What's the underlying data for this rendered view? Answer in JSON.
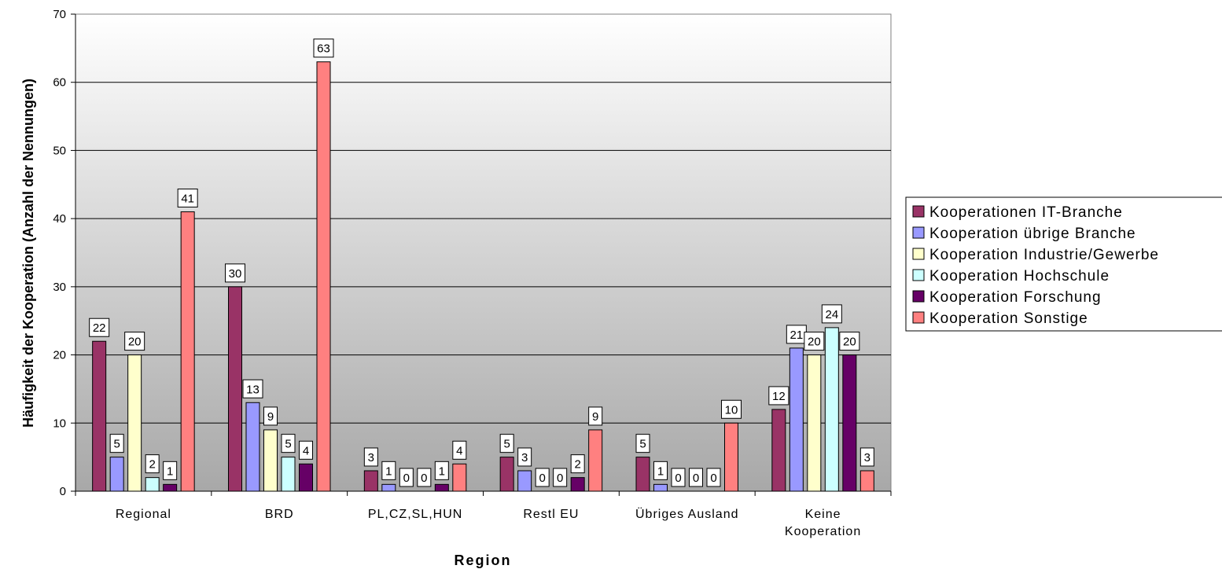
{
  "chart_data": {
    "type": "bar",
    "title": "",
    "xlabel": "Region",
    "ylabel": "Häufigkeit der Kooperation (Anzahl der Nennungen)",
    "ylim": [
      0,
      70
    ],
    "yticks": [
      0,
      10,
      20,
      30,
      40,
      50,
      60,
      70
    ],
    "grid": true,
    "legend_position": "right",
    "categories": [
      [
        "Regional"
      ],
      [
        "BRD"
      ],
      [
        "PL,CZ,SL,HUN"
      ],
      [
        "Restl EU"
      ],
      [
        "Übriges Ausland"
      ],
      [
        "Keine",
        "Kooperation"
      ]
    ],
    "series": [
      {
        "name": "Kooperationen IT-Branche",
        "color": "#993366",
        "values": [
          22,
          30,
          3,
          5,
          5,
          12
        ]
      },
      {
        "name": "Kooperation übrige Branche",
        "color": "#9999FF",
        "values": [
          5,
          13,
          1,
          3,
          1,
          21
        ]
      },
      {
        "name": "Kooperation Industrie/Gewerbe",
        "color": "#FFFFCC",
        "values": [
          20,
          9,
          0,
          0,
          0,
          20
        ]
      },
      {
        "name": "Kooperation Hochschule",
        "color": "#CCFFFF",
        "values": [
          2,
          5,
          0,
          0,
          0,
          24
        ]
      },
      {
        "name": "Kooperation Forschung",
        "color": "#660066",
        "values": [
          1,
          4,
          1,
          2,
          0,
          20
        ]
      },
      {
        "name": "Kooperation Sonstige",
        "color": "#FF8080",
        "values": [
          41,
          63,
          4,
          9,
          10,
          3
        ]
      }
    ]
  }
}
